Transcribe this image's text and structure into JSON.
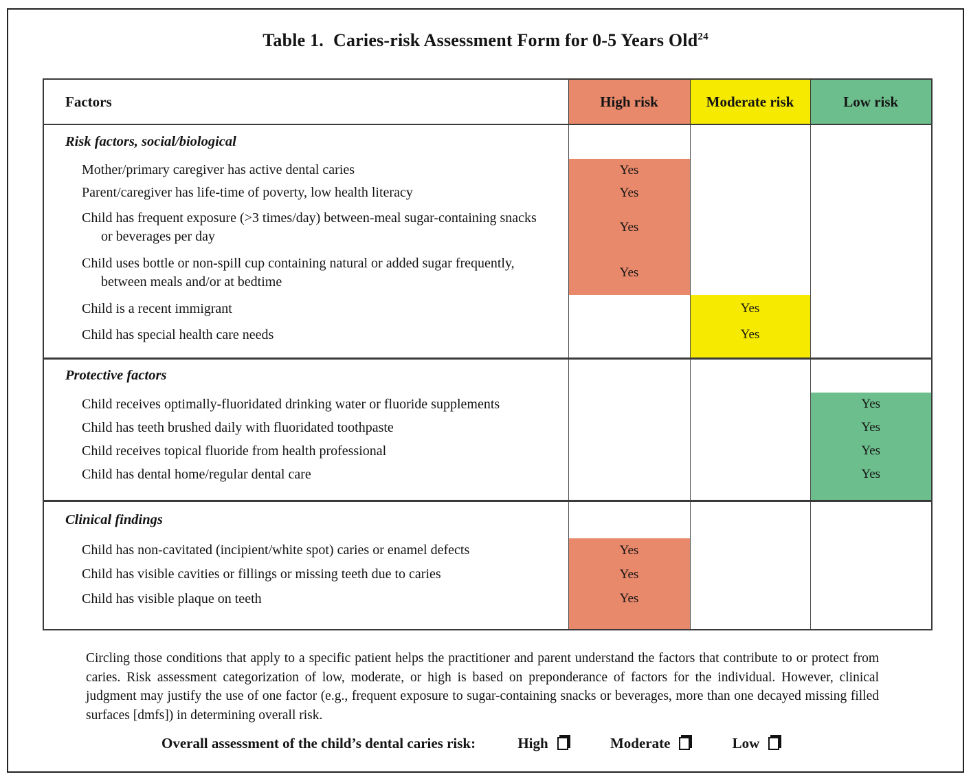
{
  "title": {
    "prefix": "Table 1.",
    "main": "Caries-risk Assessment Form for 0-5 Years Old",
    "superscript": "24"
  },
  "colors": {
    "high_risk": "#E8896B",
    "moderate_risk": "#F5EA00",
    "low_risk": "#6DBE8D"
  },
  "table": {
    "columns": [
      "Factors",
      "High risk",
      "Moderate risk",
      "Low risk"
    ],
    "sections": [
      {
        "heading": "Risk factors, social/biological",
        "rows": [
          {
            "factor": "Mother/primary caregiver has active dental caries",
            "risk_level": "high",
            "value": "Yes"
          },
          {
            "factor": "Parent/caregiver has life-time of poverty, low health literacy",
            "risk_level": "high",
            "value": "Yes"
          },
          {
            "factor": "Child has frequent exposure (>3 times/day) between-meal sugar-containing snacks or beverages per day",
            "risk_level": "high",
            "value": "Yes"
          },
          {
            "factor": "Child uses bottle or non-spill cup containing natural or added sugar frequently, between meals and/or at bedtime",
            "risk_level": "high",
            "value": "Yes"
          },
          {
            "factor": "Child is a recent immigrant",
            "risk_level": "moderate",
            "value": "Yes"
          },
          {
            "factor": "Child has special health care needs",
            "risk_level": "moderate",
            "value": "Yes"
          }
        ]
      },
      {
        "heading": "Protective factors",
        "rows": [
          {
            "factor": "Child receives optimally-fluoridated drinking water or fluoride supplements",
            "risk_level": "low",
            "value": "Yes"
          },
          {
            "factor": "Child has teeth brushed daily with fluoridated toothpaste",
            "risk_level": "low",
            "value": "Yes"
          },
          {
            "factor": "Child receives topical fluoride from health professional",
            "risk_level": "low",
            "value": "Yes"
          },
          {
            "factor": "Child has dental home/regular dental care",
            "risk_level": "low",
            "value": "Yes"
          }
        ]
      },
      {
        "heading": "Clinical findings",
        "rows": [
          {
            "factor": "Child has non-cavitated (incipient/white spot) caries or enamel defects",
            "risk_level": "high",
            "value": "Yes"
          },
          {
            "factor": "Child has visible cavities or fillings or missing teeth due to caries",
            "risk_level": "high",
            "value": "Yes"
          },
          {
            "factor": "Child has visible plaque on teeth",
            "risk_level": "high",
            "value": "Yes"
          }
        ]
      }
    ]
  },
  "footnote": "Circling those conditions that apply to a specific patient helps the practitioner and parent understand the factors that contribute to or protect from caries. Risk assessment categorization of low, moderate, or high is based on preponderance of factors for the individual. However, clinical judgment may justify the use of one factor (e.g., frequent exposure to sugar-containing snacks or beverages, more than one decayed missing filled surfaces [dmfs]) in determining overall risk.",
  "assessment": {
    "label": "Overall assessment of the child’s dental caries risk:",
    "options": [
      "High",
      "Moderate",
      "Low"
    ]
  }
}
